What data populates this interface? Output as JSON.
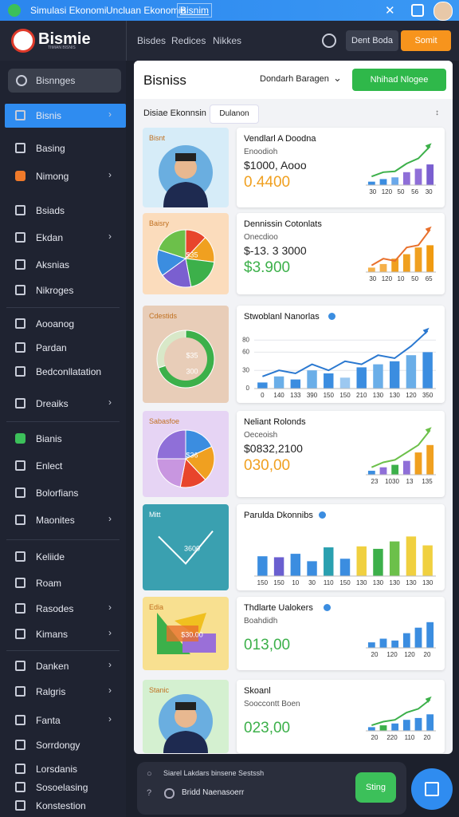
{
  "top_bar": {
    "title": "Simulasi Ekonomi",
    "links": [
      "Uncluan Ekonomia",
      "Bisnim"
    ]
  },
  "header": {
    "logo": "Bismie",
    "tagline": "TIMIAN BISNIS",
    "nav": [
      "Bisdes",
      "Redices",
      "Nikkes"
    ],
    "buttons": [
      "Dent Boda",
      "Somit"
    ]
  },
  "sidebar": {
    "search": "Bisnnges",
    "items": [
      {
        "label": "Bisnis",
        "active": true,
        "chevron": true
      },
      {
        "label": "Basing"
      },
      {
        "label": "Nimong",
        "chevron": true,
        "icon_color": "#f07a2a"
      },
      {
        "label": "Bsiads"
      },
      {
        "label": "Ekdan",
        "chevron": true
      },
      {
        "label": "Aksnias"
      },
      {
        "label": "Nikroges"
      },
      {
        "label": "Aooanog"
      },
      {
        "label": "Pardan"
      },
      {
        "label": "Bedconllatation"
      },
      {
        "label": "Dreaiks",
        "chevron": true
      },
      {
        "label": "Bianis",
        "icon_color": "#3cc05a"
      },
      {
        "label": "Enlect"
      },
      {
        "label": "Bolorfians"
      },
      {
        "label": "Maonites",
        "chevron": true
      },
      {
        "label": "Keliide"
      },
      {
        "label": "Roam"
      },
      {
        "label": "Rasodes",
        "chevron": true
      },
      {
        "label": "Kimans",
        "chevron": true
      },
      {
        "label": "Danken",
        "chevron": true
      },
      {
        "label": "Ralgris",
        "chevron": true
      },
      {
        "label": "Fanta",
        "chevron": true
      },
      {
        "label": "Sorrdongy"
      },
      {
        "label": "Lorsdanis"
      },
      {
        "label": "Sosoelasing"
      },
      {
        "label": "Konstestion"
      }
    ]
  },
  "main": {
    "title": "Bisniss",
    "dropdown": "Dondarh Baragen",
    "button": "Nhihad Nlogee",
    "filter": "Disiae Ekonnsin",
    "tab": "Dulanon",
    "cards": [
      {
        "thumb": {
          "label": "Bisnt",
          "kind": "person",
          "bg": "#d6ecf8"
        },
        "title": "Vendlarl A Doodna",
        "sub": "Enoodioh",
        "value": "$1000, Aooo",
        "value2": "0.4400",
        "accent": "#f0a020",
        "chart": {
          "values": [
            8,
            14,
            18,
            30,
            38,
            48
          ],
          "colors": [
            "#3b8de0",
            "#3b8de0",
            "#6aa8ea",
            "#8f6fd8",
            "#8f6fd8",
            "#7a5fd0"
          ],
          "trend": [
            20,
            30,
            32,
            50,
            62,
            90
          ],
          "trend_color": "#3cb04a",
          "ylim": [
            0,
            100
          ],
          "xlabels": [
            "30",
            "120",
            "50",
            "56",
            "30"
          ]
        }
      },
      {
        "thumb": {
          "label": "Baisry",
          "kind": "pie",
          "bg": "#fbdcbc",
          "slices": [
            12,
            15,
            20,
            18,
            15,
            20
          ],
          "colors": [
            "#e8452c",
            "#f0a020",
            "#3cb04a",
            "#7a5fd0",
            "#3b8de0",
            "#6cc04a"
          ],
          "notes": [
            "$35"
          ]
        },
        "title": "Dennissin Cotonlats",
        "sub": "Onecdioo",
        "value": "$-13. 3 3000",
        "value2": "$3.900",
        "accent": "#3cb04a",
        "chart": {
          "values": [
            10,
            18,
            30,
            40,
            55,
            60
          ],
          "colors": [
            "#f5b04a",
            "#f5b04a",
            "#f0a020",
            "#f0a020",
            "#f0a020",
            "#f09a10"
          ],
          "trend": [
            15,
            30,
            25,
            55,
            60,
            95
          ],
          "trend_color": "#e8702c",
          "ylim": [
            0,
            100
          ],
          "xlabels": [
            "30",
            "120",
            "10",
            "50",
            "65"
          ]
        }
      },
      {
        "thumb": {
          "label": "Cdestids",
          "kind": "donut",
          "bg": "#e8cdb8",
          "slices": [
            70,
            30
          ],
          "colors": [
            "#3cb04a",
            "#d8e8c8"
          ],
          "notes": [
            "$35",
            "300"
          ]
        },
        "title": "Stwoblanl Nanorlas",
        "verified": true,
        "wide": true,
        "chart": {
          "values": [
            10,
            20,
            15,
            30,
            25,
            18,
            35,
            40,
            45,
            55,
            60
          ],
          "colors": [
            "#3b8de0",
            "#6aaee8",
            "#3b8de0",
            "#6aaee8",
            "#3b8de0",
            "#9cc8f0",
            "#3b8de0",
            "#6aaee8",
            "#3b8de0",
            "#6aaee8",
            "#3b8de0"
          ],
          "trend": [
            20,
            30,
            25,
            40,
            30,
            45,
            40,
            55,
            50,
            70,
            95
          ],
          "trend_color": "#2a78d0",
          "ylim": [
            0,
            100
          ],
          "yticks": [
            0,
            30,
            60,
            80
          ],
          "xlabels": [
            "0",
            "140",
            "133",
            "390",
            "150",
            "150",
            "210",
            "130",
            "130",
            "120",
            "350"
          ]
        }
      },
      {
        "thumb": {
          "label": "Sabasfoe",
          "kind": "pie",
          "bg": "#e6d4f4",
          "slices": [
            18,
            20,
            15,
            22,
            25
          ],
          "colors": [
            "#3b8de0",
            "#f0a020",
            "#e8452c",
            "#c896e0",
            "#8f6fd8"
          ],
          "notes": [
            "$36"
          ]
        },
        "title": "Neliant Rolonds",
        "sub": "Oeceoish",
        "value": "$0832,2100",
        "value2": "030,00",
        "accent": "#f0a020",
        "chart": {
          "values": [
            8,
            15,
            20,
            28,
            45,
            60
          ],
          "colors": [
            "#3b8de0",
            "#8f6fd8",
            "#3cb04a",
            "#8f6fd8",
            "#f0a020",
            "#f0a020"
          ],
          "trend": [
            15,
            25,
            30,
            45,
            60,
            90
          ],
          "trend_color": "#6cc04a",
          "ylim": [
            0,
            100
          ],
          "xlabels": [
            "23",
            "1030",
            "13",
            "135"
          ]
        }
      },
      {
        "thumb": {
          "label": "Mitt",
          "kind": "line",
          "bg": "#3aa0b0",
          "trend": [
            70,
            20,
            80
          ],
          "notes": [
            "3600"
          ]
        },
        "title": "Parulda Dkonnibs",
        "verified": true,
        "wide": true,
        "chart": {
          "values": [
            40,
            38,
            45,
            30,
            58,
            35,
            60,
            55,
            70,
            80,
            62
          ],
          "colors": [
            "#3b8de0",
            "#6a5fd0",
            "#3b8de0",
            "#3b8de0",
            "#2aa0b0",
            "#3b8de0",
            "#f0d040",
            "#3cb04a",
            "#6cc04a",
            "#f0d040",
            "#f0d040"
          ],
          "ylim": [
            0,
            100
          ],
          "xlabels": [
            "150",
            "150",
            "10",
            "30",
            "110",
            "150",
            "130",
            "130",
            "130",
            "130",
            "130"
          ]
        }
      },
      {
        "thumb": {
          "label": "Edia",
          "kind": "shapes",
          "bg": "#f8e090",
          "notes": [
            "$30.00"
          ]
        },
        "title": "Thdlarte Ualokers",
        "verified": true,
        "sub": "Boahdidh",
        "value2": "013,00",
        "accent": "#3cb04a",
        "chart": {
          "values": [
            15,
            25,
            20,
            40,
            55,
            70
          ],
          "colors": [
            "#3b8de0",
            "#3b8de0",
            "#3b8de0",
            "#3b8de0",
            "#3b8de0",
            "#3b8de0"
          ],
          "ylim": [
            0,
            100
          ],
          "xlabels": [
            "20",
            "120",
            "120",
            "20"
          ]
        }
      },
      {
        "thumb": {
          "label": "Stanic",
          "kind": "person",
          "bg": "#d4f0d0"
        },
        "title": "Skoanl",
        "sub": "Sooccontt Boen",
        "value2": "023,00",
        "accent": "#3cb04a",
        "chart": {
          "values": [
            10,
            15,
            20,
            30,
            35,
            45
          ],
          "colors": [
            "#3b8de0",
            "#3cb04a",
            "#3b8de0",
            "#3b8de0",
            "#3b8de0",
            "#3b8de0"
          ],
          "trend": [
            15,
            25,
            30,
            50,
            60,
            85
          ],
          "trend_color": "#3cb04a",
          "ylim": [
            0,
            100
          ],
          "xlabels": [
            "20",
            "220",
            "110",
            "20"
          ]
        }
      }
    ]
  },
  "bottom": {
    "line1": "Siarel Lakdars binsene Sestssh",
    "line2": "Bridd Naenasoerr",
    "button": "Sting"
  }
}
